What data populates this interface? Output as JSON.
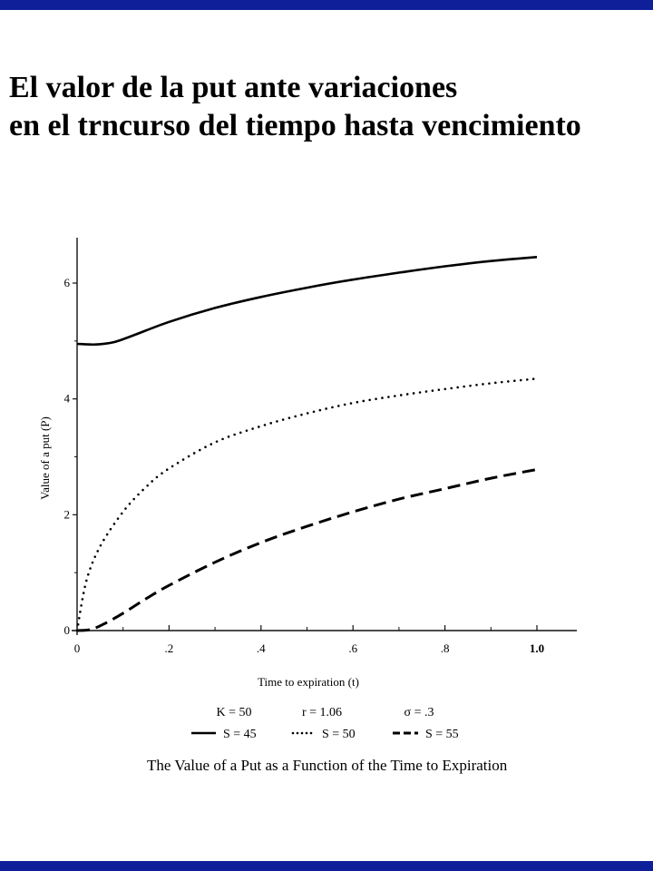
{
  "slide": {
    "title_line1": "El valor de la put ante variaciones",
    "title_line2": "en el trncurso del tiempo hasta vencimiento",
    "accent_color": "#0f1f9a"
  },
  "chart_data": {
    "type": "line",
    "title": "The Value of a Put as a Function of the Time to Expiration",
    "xlabel": "Time to expiration (t)",
    "ylabel": "Value of a put (P)",
    "xlim": [
      0,
      1.0
    ],
    "ylim": [
      0,
      6.6
    ],
    "x_ticks": [
      {
        "value": 0,
        "label": "0"
      },
      {
        "value": 0.2,
        "label": ".2"
      },
      {
        "value": 0.4,
        "label": ".4"
      },
      {
        "value": 0.6,
        "label": ".6"
      },
      {
        "value": 0.8,
        "label": ".8"
      },
      {
        "value": 1.0,
        "label": "1.0"
      }
    ],
    "y_ticks": [
      {
        "value": 0,
        "label": "0"
      },
      {
        "value": 2,
        "label": "2"
      },
      {
        "value": 4,
        "label": "4"
      },
      {
        "value": 6,
        "label": "6"
      }
    ],
    "parameters": [
      "K = 50",
      "r = 1.06",
      "σ = .3"
    ],
    "series": [
      {
        "name": "S = 45",
        "style": "solid",
        "x": [
          0,
          0.04,
          0.08,
          0.12,
          0.2,
          0.3,
          0.4,
          0.5,
          0.6,
          0.7,
          0.8,
          0.9,
          1.0
        ],
        "y": [
          4.95,
          4.94,
          4.98,
          5.09,
          5.33,
          5.57,
          5.76,
          5.92,
          6.06,
          6.18,
          6.29,
          6.38,
          6.45
        ]
      },
      {
        "name": "S = 50",
        "style": "dotted",
        "x": [
          0,
          0.02,
          0.05,
          0.1,
          0.15,
          0.2,
          0.3,
          0.4,
          0.5,
          0.6,
          0.7,
          0.8,
          0.9,
          1.0
        ],
        "y": [
          0.0,
          0.85,
          1.45,
          2.05,
          2.48,
          2.8,
          3.25,
          3.53,
          3.75,
          3.93,
          4.06,
          4.17,
          4.27,
          4.35
        ]
      },
      {
        "name": "S = 55",
        "style": "dashed",
        "x": [
          0,
          0.03,
          0.06,
          0.1,
          0.15,
          0.2,
          0.3,
          0.4,
          0.5,
          0.6,
          0.7,
          0.8,
          0.9,
          1.0
        ],
        "y": [
          0.0,
          0.02,
          0.12,
          0.3,
          0.55,
          0.78,
          1.18,
          1.52,
          1.8,
          2.05,
          2.27,
          2.45,
          2.63,
          2.78
        ]
      }
    ]
  }
}
